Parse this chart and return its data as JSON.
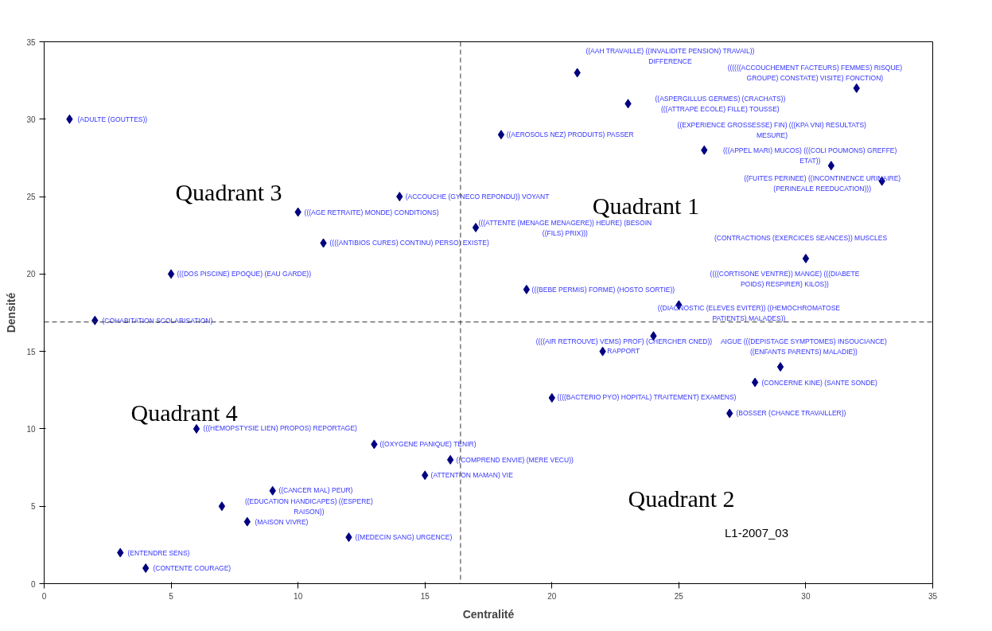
{
  "chart_data": {
    "type": "scatter",
    "xlabel": "Centralité",
    "ylabel": "Densité",
    "x": [
      1,
      2,
      3,
      4,
      5,
      6,
      7,
      8,
      9,
      10,
      11,
      12,
      13,
      14,
      15,
      16,
      17,
      18,
      19,
      20,
      21,
      22,
      23,
      24,
      25,
      26,
      27,
      28,
      29,
      30,
      31,
      32,
      33
    ],
    "values": [
      30,
      17,
      2,
      1,
      20,
      10,
      5,
      4,
      6,
      24,
      22,
      3,
      9,
      25,
      7,
      8,
      23,
      29,
      19,
      12,
      33,
      15,
      31,
      16,
      18,
      28,
      11,
      13,
      14,
      21,
      27,
      32,
      26
    ],
    "color": "#000080",
    "marker": "diamond",
    "grid": false,
    "xlim": [
      0,
      35
    ],
    "ylim": [
      0,
      35
    ],
    "xticks": [
      0,
      5,
      10,
      15,
      20,
      25,
      30,
      35
    ],
    "yticks": [
      0,
      5,
      10,
      15,
      20,
      25,
      30,
      35
    ],
    "ref_lines": [
      {
        "axis": "x",
        "value": 16.4,
        "label": null
      },
      {
        "axis": "y",
        "value": 16.9,
        "label": null
      }
    ],
    "annotations": [
      "(ADULTE (GOUTTES))",
      "(COHABITATION SCOLARISATION)",
      "(ENTENDRE SENS)",
      "(CONTENTE COURAGE)",
      "(((DOS PISCINE) EPOQUE) (EAU GARDE))",
      "(((HEMOPSTYSIE LIEN) PROPOS) REPORTAGE)",
      "((EDUCATION HANDICAPES) ((ESPERE)\nRAISON))",
      "(MAISON VIVRE)",
      "((CANCER MAL) PEUR)",
      "(((AGE RETRAITE) MONDE) CONDITIONS)",
      "((((ANTIBIOS CURES) CONTINU) PERSO) EXISTE)",
      "((MEDECIN SANG) URGENCE)",
      "((OXYGENE PANIQUE) TENIR)",
      "(ACCOUCHE (GYNECO REPONDU)) VOYANT",
      "(ATTENTION MAMAN) VIE",
      "((COMPREND ENVIE) (MERE VECU))",
      "(((ATTENTE (MENAGE MENAGERE)) HEURE) (BESOIN\n((FILS) PRIX)))",
      "((AEROSOLS NEZ) PRODUITS) PASSER",
      "(((BEBE PERMIS) FORME) (HOSTO SORTIE))",
      "((((BACTERIO PYO) HOPITAL) TRAITEMENT) EXAMENS)",
      "((AAH TRAVAILLE) ((INVALIDITE PENSION) TRAVAIL))\nDIFFERENCE",
      "((((AIR RETROUVE) VEMS) PROF) (CHERCHER CNED))",
      "RAPPORT",
      "((ASPERGILLUS GERMES) (CRACHATS))\n(((ATTRAPE ECOLE) FILLE) TOUSSE)",
      "((DIAGNOSTIC (ELEVES EVITER)) ((HEMOCHROMATOSE\nPATIENTS) MALADES))",
      "((EXPERIENCE GROSSESSE) FIN) (((KPA VNI) RESULTATS)\nMESURE)",
      "(BOSSER (CHANCE TRAVAILLER))",
      "(CONCERNE KINE) (SANTE SONDE)",
      "AIGUE (((DEPISTAGE SYMPTOMES) INSOUCIANCE)\n((ENFANTS PARENTS) MALADIE))",
      "(CONTRACTIONS (EXERCICES SEANCES)) MUSCLES",
      "((((CORTISONE VENTRE)) MANGE) (((DIABETE\nPOIDS) RESPIRER) KILOS))",
      "(((APPEL MARI) MUCOS) (((COLI POUMONS) GREFFE)\nETAT))",
      "((((((ACCOUCHEMENT FACTEURS) FEMMES) RISQUE)\nGROUPE) CONSTATE) VISITE) FONCTION)",
      "((FUITES PERINEE) ((INCONTINENCE URINAIRE)\n(PERINEALE REEDUCATION)))",
      "Quadrant 3",
      "Quadrant 1",
      "Quadrant 4",
      "Quadrant 2",
      "L1-2007_03"
    ]
  }
}
